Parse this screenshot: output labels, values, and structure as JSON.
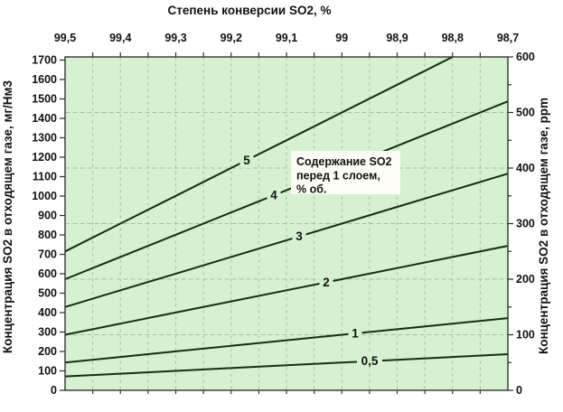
{
  "top_title": "Степень конверсии SO2, %",
  "axes": {
    "top": {
      "tick_labels": [
        "99,5",
        "99,4",
        "99,3",
        "99,2",
        "99,1",
        "99",
        "98,9",
        "98,8",
        "98,7"
      ]
    },
    "left": {
      "title": "Концентрация SO2 в отходящем газе, мг/Нм3",
      "tick_labels": [
        "0",
        "100",
        "200",
        "300",
        "400",
        "500",
        "600",
        "700",
        "800",
        "900",
        "1000",
        "1100",
        "1200",
        "1300",
        "1400",
        "1500",
        "1600",
        "1700"
      ]
    },
    "right": {
      "title": "Концентрация SO2 в отходящем газе, ppm",
      "tick_labels": [
        "0",
        "100",
        "200",
        "300",
        "400",
        "500",
        "600"
      ]
    }
  },
  "annotation": {
    "lines": [
      "Содержание SO2",
      "перед 1 слоем,",
      "% об."
    ]
  },
  "series_labels": {
    "s5": "5",
    "s4": "4",
    "s3": "3",
    "s2": "2",
    "s1": "1",
    "s05": "0,5"
  },
  "colors": {
    "plot_background": "#d6f1cf",
    "grid": "#a3bfa0",
    "series_line": "#10300f",
    "axis": "#333333",
    "annotation_background": "#fdfdf6",
    "text": "#111111"
  },
  "chart_data": {
    "type": "line",
    "title": "Степень конверсии SO2, %",
    "x_axis": {
      "label": "Степень конверсии SO2, %",
      "position": "top",
      "range": [
        99.5,
        98.7
      ],
      "reversed": true,
      "major_ticks": [
        99.5,
        99.4,
        99.3,
        99.2,
        99.1,
        99.0,
        98.9,
        98.8,
        98.7
      ],
      "minor_tick_step": 0.05
    },
    "y_axis_left": {
      "label": "Концентрация SO2 в отходящем газе, мг/Нм3",
      "range": [
        0,
        1716
      ],
      "ticks": [
        0,
        100,
        200,
        300,
        400,
        500,
        600,
        700,
        800,
        900,
        1000,
        1100,
        1200,
        1300,
        1400,
        1500,
        1600,
        1700
      ]
    },
    "y_axis_right": {
      "label": "Концентрация SO2 в отходящем газе, ppm",
      "range": [
        0,
        600
      ],
      "ticks": [
        0,
        100,
        200,
        300,
        400,
        500,
        600
      ],
      "minor_tick_step": 50
    },
    "grid": true,
    "legend_annotation": "Содержание SO2 перед 1 слоем, % об.",
    "series": [
      {
        "name": "5",
        "inlet_so2_vol_pct": 5,
        "x": [
          99.5,
          99.4,
          99.3,
          99.2,
          99.1,
          99.0,
          98.9,
          98.8
        ],
        "ppm": [
          250,
          300,
          350,
          400,
          450,
          500,
          550,
          600
        ]
      },
      {
        "name": "4",
        "inlet_so2_vol_pct": 4,
        "x": [
          99.5,
          99.4,
          99.3,
          99.2,
          99.1,
          99.0,
          98.9,
          98.8,
          98.7
        ],
        "ppm": [
          200,
          240,
          280,
          320,
          360,
          400,
          440,
          480,
          520
        ]
      },
      {
        "name": "3",
        "inlet_so2_vol_pct": 3,
        "x": [
          99.5,
          99.4,
          99.3,
          99.2,
          99.1,
          99.0,
          98.9,
          98.8,
          98.7
        ],
        "ppm": [
          150,
          180,
          210,
          240,
          270,
          300,
          330,
          360,
          390
        ]
      },
      {
        "name": "2",
        "inlet_so2_vol_pct": 2,
        "x": [
          99.5,
          99.4,
          99.3,
          99.2,
          99.1,
          99.0,
          98.9,
          98.8,
          98.7
        ],
        "ppm": [
          100,
          120,
          140,
          160,
          180,
          200,
          220,
          240,
          260
        ]
      },
      {
        "name": "1",
        "inlet_so2_vol_pct": 1,
        "x": [
          99.5,
          99.4,
          99.3,
          99.2,
          99.1,
          99.0,
          98.9,
          98.8,
          98.7
        ],
        "ppm": [
          50,
          60,
          70,
          80,
          90,
          100,
          110,
          120,
          130
        ]
      },
      {
        "name": "0,5",
        "inlet_so2_vol_pct": 0.5,
        "x": [
          99.5,
          99.4,
          99.3,
          99.2,
          99.1,
          99.0,
          98.9,
          98.8,
          98.7
        ],
        "ppm": [
          25,
          30,
          35,
          40,
          45,
          50,
          55,
          60,
          65
        ]
      }
    ]
  }
}
